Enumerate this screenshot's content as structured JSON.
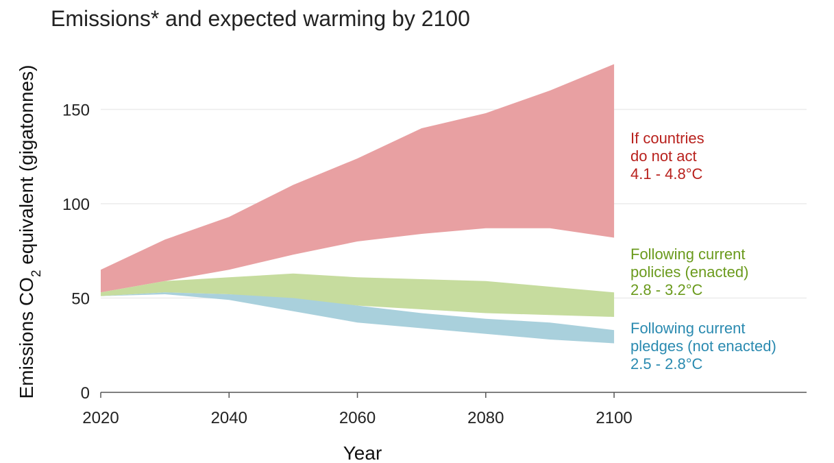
{
  "chart_data": {
    "type": "area",
    "title": "Emissions* and expected warming by 2100",
    "xlabel": "Year",
    "ylabel_prefix": "Emissions CO",
    "ylabel_subscript": "2",
    "ylabel_suffix": " equivalent (gigatonnes)",
    "xlim": [
      2020,
      2130
    ],
    "ylim": [
      0,
      180
    ],
    "x_ticks": [
      2020,
      2040,
      2060,
      2080,
      2100
    ],
    "y_ticks": [
      0,
      50,
      100,
      150
    ],
    "grid": "horizontal",
    "x": [
      2020,
      2030,
      2040,
      2050,
      2060,
      2070,
      2080,
      2090,
      2100
    ],
    "series": [
      {
        "name": "If countries do not act",
        "label_lines": [
          "If countries",
          "do not act",
          "4.1 - 4.8°C"
        ],
        "color": "#e8a0a2",
        "label_color": "#b8201c",
        "lower": [
          53,
          59,
          65,
          73,
          80,
          84,
          87,
          87,
          82
        ],
        "upper": [
          65,
          81,
          93,
          110,
          124,
          140,
          148,
          160,
          174
        ]
      },
      {
        "name": "Following current policies (enacted)",
        "label_lines": [
          "Following current",
          "policies (enacted)",
          "2.8 - 3.2°C"
        ],
        "color": "#c6dc9e",
        "label_color": "#6a9a1c",
        "lower": [
          51,
          53,
          52,
          49,
          46,
          44,
          42,
          41,
          40
        ],
        "upper": [
          53,
          59,
          61,
          63,
          61,
          60,
          59,
          56,
          53
        ]
      },
      {
        "name": "Following current pledges (not enacted)",
        "label_lines": [
          "Following current",
          "pledges (not enacted)",
          "2.5 - 2.8°C"
        ],
        "color": "#a9d0dc",
        "label_color": "#2a8ab0",
        "lower": [
          51,
          52,
          49,
          43,
          37,
          34,
          31,
          28,
          26
        ],
        "upper": [
          51,
          53,
          52,
          50,
          46,
          42,
          39,
          37,
          33
        ]
      }
    ]
  }
}
